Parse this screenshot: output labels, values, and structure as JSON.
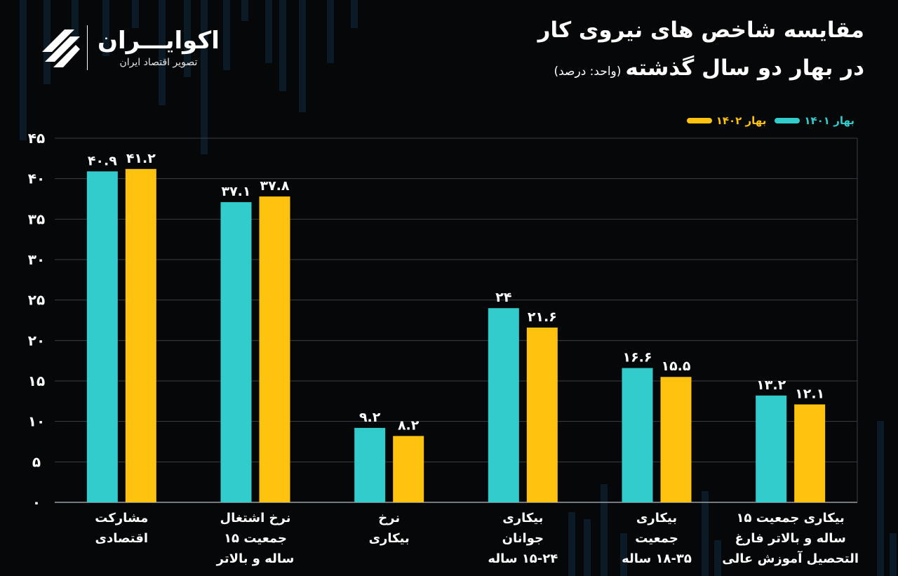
{
  "title": {
    "line1": "مقایسه شاخص های نیروی کار",
    "line2": "در بهار دو سال گذشته",
    "unit": "(واحد: درصد)"
  },
  "logo": {
    "name": "اکوایـــران",
    "tagline": "تصویر اقتصاد ایران"
  },
  "colors": {
    "series1": "#33cccc",
    "series2": "#ffc20e",
    "grid": "#3a3f44",
    "background": "#050708"
  },
  "chart_data": {
    "type": "bar",
    "categories": [
      [
        "مشارکت",
        "اقتصادی"
      ],
      [
        "نرخ اشتغال",
        "جمعیت ۱۵",
        "ساله و بالاتر"
      ],
      [
        "نرخ",
        "بیکاری"
      ],
      [
        "بیکاری",
        "جوانان",
        "۱۵-۲۴ ساله"
      ],
      [
        "بیکاری",
        "جمعیت",
        "۱۸-۳۵ ساله"
      ],
      [
        "بیکاری جمعیت ۱۵",
        "ساله و بالاتر فارغ",
        "التحصیل آموزش عالی"
      ]
    ],
    "series": [
      {
        "name": "بهار ۱۴۰۱",
        "values": [
          40.9,
          37.1,
          9.2,
          24,
          16.6,
          13.2
        ],
        "labels": [
          "۴۰.۹",
          "۳۷.۱",
          "۹.۲",
          "۲۴",
          "۱۶.۶",
          "۱۳.۲"
        ]
      },
      {
        "name": "بهار ۱۴۰۲",
        "values": [
          41.2,
          37.8,
          8.2,
          21.6,
          15.5,
          12.1
        ],
        "labels": [
          "۴۱.۲",
          "۳۷.۸",
          "۸.۲",
          "۲۱.۶",
          "۱۵.۵",
          "۱۲.۱"
        ]
      }
    ],
    "ylim": [
      0,
      45
    ],
    "yticks": [
      0,
      5,
      10,
      15,
      20,
      25,
      30,
      35,
      40,
      45
    ],
    "ytick_labels": [
      "۰",
      "۵",
      "۱۰",
      "۱۵",
      "۲۰",
      "۲۵",
      "۳۰",
      "۳۵",
      "۴۰",
      "۴۵"
    ],
    "grid": true,
    "legend_position": "top-right"
  }
}
